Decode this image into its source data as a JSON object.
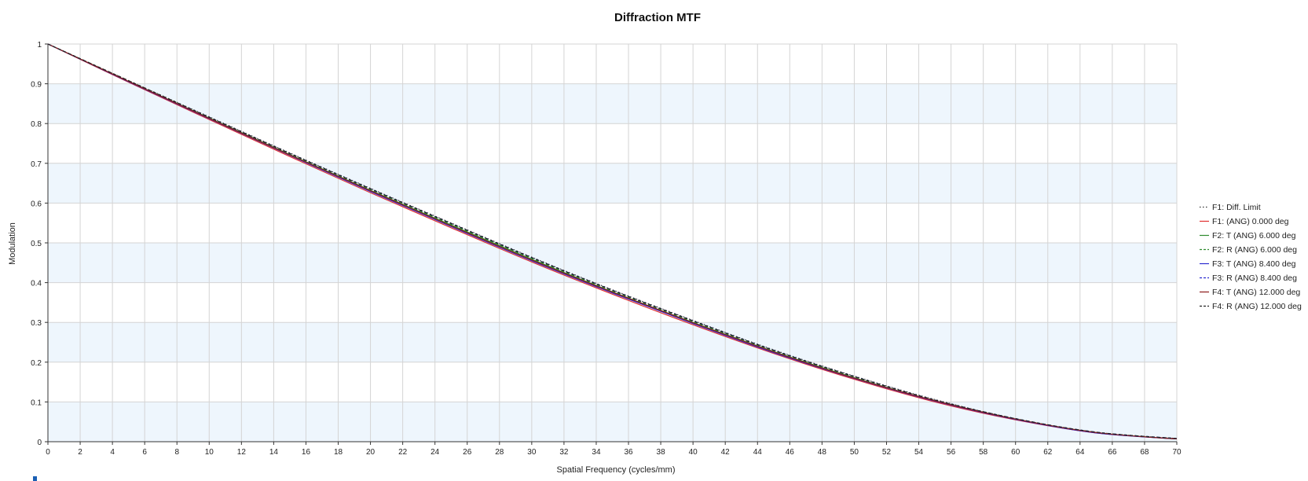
{
  "chart_data": {
    "type": "line",
    "title": "Diffraction MTF",
    "xlabel": "Spatial Frequency (cycles/mm)",
    "ylabel": "Modulation",
    "xlim": [
      0,
      70
    ],
    "ylim": [
      0,
      1
    ],
    "xticks": [
      "0",
      "2",
      "4",
      "6",
      "8",
      "10",
      "12",
      "14",
      "16",
      "18",
      "20",
      "22",
      "24",
      "26",
      "28",
      "30",
      "32",
      "34",
      "36",
      "38",
      "40",
      "42",
      "44",
      "46",
      "48",
      "50",
      "52",
      "54",
      "56",
      "58",
      "60",
      "62",
      "64",
      "66",
      "68",
      "70"
    ],
    "yticks": [
      "0",
      "0.1",
      "0.2",
      "0.3",
      "0.4",
      "0.5",
      "0.6",
      "0.7",
      "0.8",
      "0.9",
      "1"
    ],
    "grid": true,
    "legend_position": "right",
    "x": [
      0,
      5,
      10,
      15,
      20,
      25,
      30,
      35,
      40,
      45,
      50,
      55,
      60,
      65,
      70
    ],
    "series": [
      {
        "name": "F1: Diff. Limit",
        "color": "#333333",
        "dash": "dotted",
        "values": [
          1.0,
          0.908,
          0.817,
          0.726,
          0.637,
          0.55,
          0.464,
          0.382,
          0.305,
          0.231,
          0.165,
          0.106,
          0.058,
          0.024,
          0.008
        ]
      },
      {
        "name": "F1: (ANG) 0.000 deg",
        "color": "#e03030",
        "dash": "solid",
        "values": [
          1.0,
          0.904,
          0.81,
          0.717,
          0.626,
          0.538,
          0.452,
          0.371,
          0.294,
          0.222,
          0.157,
          0.1,
          0.055,
          0.022,
          0.007
        ]
      },
      {
        "name": "F2: T (ANG) 6.000 deg",
        "color": "#2e8b2e",
        "dash": "solid",
        "values": [
          1.0,
          0.906,
          0.814,
          0.722,
          0.632,
          0.545,
          0.459,
          0.377,
          0.3,
          0.227,
          0.161,
          0.103,
          0.057,
          0.023,
          0.007
        ]
      },
      {
        "name": "F2: R (ANG) 6.000 deg",
        "color": "#2e8b2e",
        "dash": "dashed",
        "values": [
          1.0,
          0.907,
          0.815,
          0.724,
          0.634,
          0.547,
          0.461,
          0.379,
          0.302,
          0.229,
          0.163,
          0.104,
          0.057,
          0.023,
          0.008
        ]
      },
      {
        "name": "F3: T (ANG) 8.400 deg",
        "color": "#2a2ad0",
        "dash": "solid",
        "values": [
          1.0,
          0.905,
          0.812,
          0.72,
          0.629,
          0.541,
          0.455,
          0.374,
          0.297,
          0.224,
          0.159,
          0.102,
          0.056,
          0.022,
          0.007
        ]
      },
      {
        "name": "F3: R (ANG) 8.400 deg",
        "color": "#2a2ad0",
        "dash": "dashed",
        "values": [
          1.0,
          0.907,
          0.816,
          0.725,
          0.636,
          0.549,
          0.463,
          0.381,
          0.304,
          0.23,
          0.164,
          0.105,
          0.058,
          0.024,
          0.008
        ]
      },
      {
        "name": "F4: T (ANG) 12.000 deg",
        "color": "#8b1a1a",
        "dash": "solid",
        "values": [
          1.0,
          0.906,
          0.813,
          0.721,
          0.631,
          0.543,
          0.457,
          0.376,
          0.299,
          0.226,
          0.16,
          0.103,
          0.057,
          0.023,
          0.007
        ]
      },
      {
        "name": "F4: R (ANG) 12.000 deg",
        "color": "#222222",
        "dash": "dashed",
        "values": [
          1.0,
          0.908,
          0.816,
          0.725,
          0.636,
          0.549,
          0.463,
          0.381,
          0.304,
          0.23,
          0.164,
          0.105,
          0.058,
          0.024,
          0.008
        ]
      }
    ]
  }
}
